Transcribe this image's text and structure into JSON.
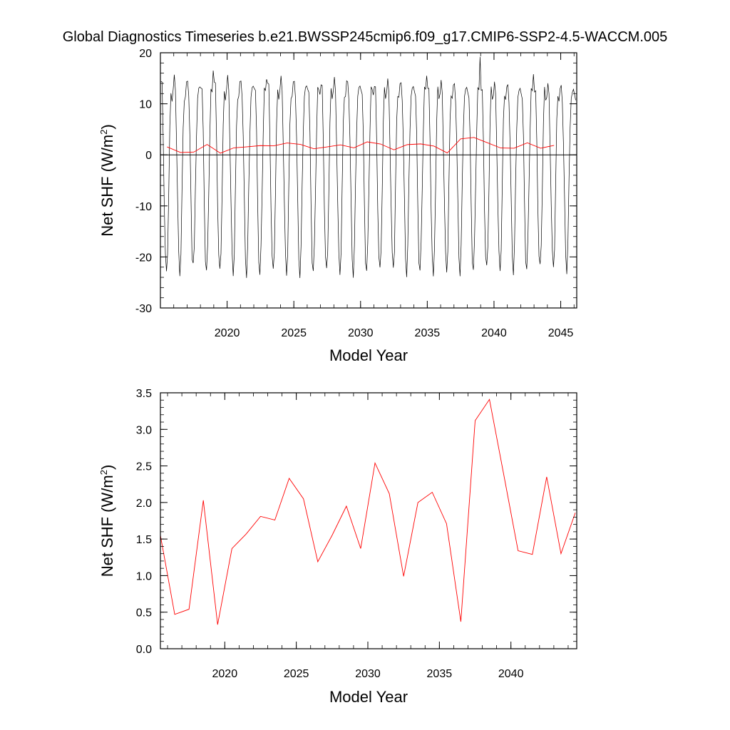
{
  "figure": {
    "title": "Global Diagnostics Timeseries b.e21.BWSSP245cmip6.f09_g17.CMIP6-SSP2-4.5-WACCM.005"
  },
  "colors": {
    "monthly": "#000000",
    "annual": "#ff0000",
    "axes": "#000000"
  },
  "chart_data": [
    {
      "type": "line",
      "title": "Global Diagnostics Timeseries b.e21.BWSSP245cmip6.f09_g17.CMIP6-SSP2-4.5-WACCM.005",
      "xlabel": "Model Year",
      "ylabel": {
        "text": "Net SHF (W/m",
        "sup": "2",
        "close": ")"
      },
      "xlim": [
        2015,
        2046.2
      ],
      "ylim": [
        -30,
        20
      ],
      "xticks": [
        2020,
        2025,
        2030,
        2035,
        2040,
        2045
      ],
      "yticks": [
        -30,
        -20,
        -10,
        0,
        10,
        20
      ],
      "xminor_step": 1,
      "yminor_step": 2,
      "zero_line": true,
      "grid": false,
      "series": [
        {
          "style": "monthly",
          "start": 2015.04,
          "step": 0.08333,
          "cycle": [
            13.5,
            12.2,
            3.5,
            -9.0,
            -19.5,
            -22.5,
            -18.0,
            -6.5,
            5.0,
            11.5,
            11.2,
            12.2
          ],
          "overrides": {
            "47": 16.5,
            "287": 19.2,
            "95": 14.8,
            "167": 14.5,
            "239": 15.5,
            "335": 15.8
          },
          "min_overrides": {
            "5": -22.8,
            "29": -21.2,
            "53": -22.3,
            "89": -23.5,
            "245": -23.8,
            "209": -22.1,
            "353": -22.0
          }
        },
        {
          "style": "annual",
          "x": [
            2015.5,
            2016.5,
            2017.5,
            2018.5,
            2019.5,
            2020.5,
            2021.5,
            2022.5,
            2023.5,
            2024.5,
            2025.5,
            2026.5,
            2027.5,
            2028.5,
            2029.5,
            2030.5,
            2031.5,
            2032.5,
            2033.5,
            2034.5,
            2035.5,
            2036.5,
            2037.5,
            2038.5,
            2039.5,
            2040.5,
            2041.5,
            2042.5,
            2043.5,
            2044.5
          ],
          "y": [
            1.55,
            0.47,
            0.54,
            2.03,
            0.33,
            1.37,
            1.57,
            1.81,
            1.76,
            2.33,
            2.05,
            1.19,
            1.55,
            1.95,
            1.37,
            2.54,
            2.12,
            0.99,
            2.0,
            2.14,
            1.71,
            0.37,
            3.12,
            3.41,
            2.38,
            1.34,
            1.29,
            2.35,
            1.3,
            1.86
          ]
        }
      ]
    },
    {
      "type": "line",
      "xlabel": "Model Year",
      "ylabel": {
        "text": "Net SHF (W/m",
        "sup": "2",
        "close": ")"
      },
      "xlim": [
        2015.5,
        2044.6
      ],
      "ylim": [
        0.0,
        3.5
      ],
      "xticks": [
        2020,
        2025,
        2030,
        2035,
        2040
      ],
      "yticks": [
        0.0,
        0.5,
        1.0,
        1.5,
        2.0,
        2.5,
        3.0,
        3.5
      ],
      "ytick_labels": [
        "0.0",
        "0.5",
        "1.0",
        "1.5",
        "2.0",
        "2.5",
        "3.0",
        "3.5"
      ],
      "xminor_step": 1,
      "yminor_step": 0.1,
      "grid": false,
      "series": [
        {
          "style": "annual",
          "x": [
            2015.5,
            2016.5,
            2017.5,
            2018.5,
            2019.5,
            2020.5,
            2021.5,
            2022.5,
            2023.5,
            2024.5,
            2025.5,
            2026.5,
            2027.5,
            2028.5,
            2029.5,
            2030.5,
            2031.5,
            2032.5,
            2033.5,
            2034.5,
            2035.5,
            2036.5,
            2037.5,
            2038.5,
            2039.5,
            2040.5,
            2041.5,
            2042.5,
            2043.5,
            2044.5
          ],
          "y": [
            1.55,
            0.47,
            0.54,
            2.03,
            0.33,
            1.37,
            1.57,
            1.81,
            1.76,
            2.33,
            2.05,
            1.19,
            1.55,
            1.95,
            1.37,
            2.54,
            2.12,
            0.99,
            2.0,
            2.14,
            1.71,
            0.37,
            3.12,
            3.41,
            2.38,
            1.34,
            1.29,
            2.35,
            1.3,
            1.86
          ]
        }
      ]
    }
  ]
}
